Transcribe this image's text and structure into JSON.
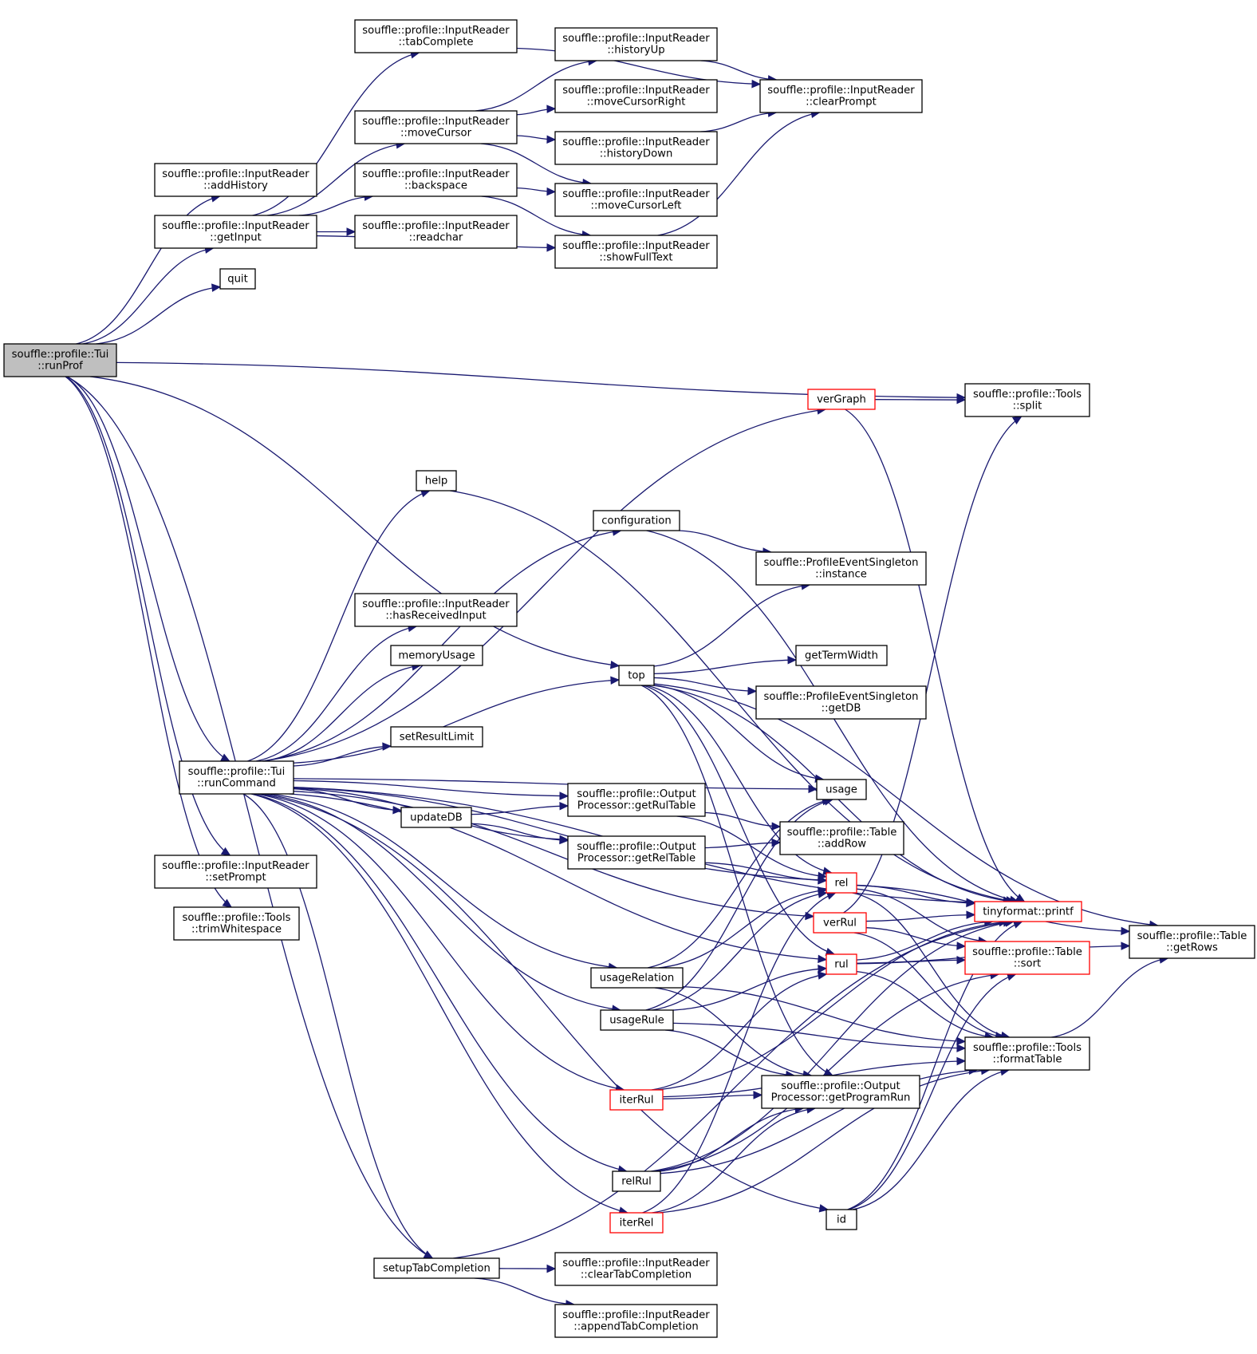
{
  "diagram": {
    "colors": {
      "edge": "#191970",
      "root_fill": "#bfbfbf",
      "highlight_border": "#ff0000",
      "box_border": "#000000"
    },
    "nodes": [
      {
        "id": "runProf",
        "lines": [
          "souffle::profile::Tui",
          "::runProf"
        ],
        "style": "root"
      },
      {
        "id": "addHistory",
        "lines": [
          "souffle::profile::InputReader",
          "::addHistory"
        ]
      },
      {
        "id": "getInput",
        "lines": [
          "souffle::profile::InputReader",
          "::getInput"
        ]
      },
      {
        "id": "quit",
        "lines": [
          "quit"
        ]
      },
      {
        "id": "tabComplete",
        "lines": [
          "souffle::profile::InputReader",
          "::tabComplete"
        ]
      },
      {
        "id": "moveCursor",
        "lines": [
          "souffle::profile::InputReader",
          "::moveCursor"
        ]
      },
      {
        "id": "backspace",
        "lines": [
          "souffle::profile::InputReader",
          "::backspace"
        ]
      },
      {
        "id": "readchar",
        "lines": [
          "souffle::profile::InputReader",
          "::readchar"
        ]
      },
      {
        "id": "historyUp",
        "lines": [
          "souffle::profile::InputReader",
          "::historyUp"
        ]
      },
      {
        "id": "moveCursorRight",
        "lines": [
          "souffle::profile::InputReader",
          "::moveCursorRight"
        ]
      },
      {
        "id": "historyDown",
        "lines": [
          "souffle::profile::InputReader",
          "::historyDown"
        ]
      },
      {
        "id": "moveCursorLeft",
        "lines": [
          "souffle::profile::InputReader",
          "::moveCursorLeft"
        ]
      },
      {
        "id": "showFullText",
        "lines": [
          "souffle::profile::InputReader",
          "::showFullText"
        ]
      },
      {
        "id": "clearPrompt",
        "lines": [
          "souffle::profile::InputReader",
          "::clearPrompt"
        ]
      },
      {
        "id": "verGraph",
        "lines": [
          "verGraph"
        ],
        "style": "red"
      },
      {
        "id": "split",
        "lines": [
          "souffle::profile::Tools",
          "::split"
        ]
      },
      {
        "id": "help",
        "lines": [
          "help"
        ]
      },
      {
        "id": "configuration",
        "lines": [
          "configuration"
        ]
      },
      {
        "id": "instance",
        "lines": [
          "souffle::ProfileEventSingleton",
          "::instance"
        ]
      },
      {
        "id": "hasReceivedInput",
        "lines": [
          "souffle::profile::InputReader",
          "::hasReceivedInput"
        ]
      },
      {
        "id": "memoryUsage",
        "lines": [
          "memoryUsage"
        ]
      },
      {
        "id": "top",
        "lines": [
          "top"
        ]
      },
      {
        "id": "getTermWidth",
        "lines": [
          "getTermWidth"
        ]
      },
      {
        "id": "getDB",
        "lines": [
          "souffle::ProfileEventSingleton",
          "::getDB"
        ]
      },
      {
        "id": "setResultLimit",
        "lines": [
          "setResultLimit"
        ]
      },
      {
        "id": "runCommand",
        "lines": [
          "souffle::profile::Tui",
          "::runCommand"
        ]
      },
      {
        "id": "usage",
        "lines": [
          "usage"
        ]
      },
      {
        "id": "getRulTable",
        "lines": [
          "souffle::profile::Output",
          "Processor::getRulTable"
        ]
      },
      {
        "id": "updateDB",
        "lines": [
          "updateDB"
        ]
      },
      {
        "id": "addRow",
        "lines": [
          "souffle::profile::Table",
          "::addRow"
        ]
      },
      {
        "id": "getRelTable",
        "lines": [
          "souffle::profile::Output",
          "Processor::getRelTable"
        ]
      },
      {
        "id": "rel",
        "lines": [
          "rel"
        ],
        "style": "red"
      },
      {
        "id": "setPrompt",
        "lines": [
          "souffle::profile::InputReader",
          "::setPrompt"
        ]
      },
      {
        "id": "trimWhitespace",
        "lines": [
          "souffle::profile::Tools",
          "::trimWhitespace"
        ]
      },
      {
        "id": "printf",
        "lines": [
          "tinyformat::printf"
        ],
        "style": "red"
      },
      {
        "id": "getRows",
        "lines": [
          "souffle::profile::Table",
          "::getRows"
        ]
      },
      {
        "id": "verRul",
        "lines": [
          "verRul"
        ],
        "style": "red"
      },
      {
        "id": "sort",
        "lines": [
          "souffle::profile::Table",
          "::sort"
        ],
        "style": "red"
      },
      {
        "id": "rul",
        "lines": [
          "rul"
        ],
        "style": "red"
      },
      {
        "id": "usageRelation",
        "lines": [
          "usageRelation"
        ]
      },
      {
        "id": "usageRule",
        "lines": [
          "usageRule"
        ]
      },
      {
        "id": "formatTable",
        "lines": [
          "souffle::profile::Tools",
          "::formatTable"
        ]
      },
      {
        "id": "getProgramRun",
        "lines": [
          "souffle::profile::Output",
          "Processor::getProgramRun"
        ]
      },
      {
        "id": "iterRul",
        "lines": [
          "iterRul"
        ],
        "style": "red"
      },
      {
        "id": "relRul",
        "lines": [
          "relRul"
        ]
      },
      {
        "id": "id",
        "lines": [
          "id"
        ]
      },
      {
        "id": "iterRel",
        "lines": [
          "iterRel"
        ],
        "style": "red"
      },
      {
        "id": "setupTabCompletion",
        "lines": [
          "setupTabCompletion"
        ]
      },
      {
        "id": "clearTabCompletion",
        "lines": [
          "souffle::profile::InputReader",
          "::clearTabCompletion"
        ]
      },
      {
        "id": "appendTabCompletion",
        "lines": [
          "souffle::profile::InputReader",
          "::appendTabCompletion"
        ]
      }
    ],
    "edges": [
      [
        "runProf",
        "addHistory"
      ],
      [
        "runProf",
        "getInput"
      ],
      [
        "runProf",
        "quit"
      ],
      [
        "runProf",
        "split"
      ],
      [
        "runProf",
        "top"
      ],
      [
        "runProf",
        "runCommand"
      ],
      [
        "runProf",
        "setPrompt"
      ],
      [
        "runProf",
        "trimWhitespace"
      ],
      [
        "runProf",
        "setupTabCompletion"
      ],
      [
        "getInput",
        "tabComplete"
      ],
      [
        "getInput",
        "moveCursor"
      ],
      [
        "getInput",
        "backspace"
      ],
      [
        "getInput",
        "readchar"
      ],
      [
        "getInput",
        "showFullText"
      ],
      [
        "tabComplete",
        "clearPrompt"
      ],
      [
        "moveCursor",
        "historyUp"
      ],
      [
        "moveCursor",
        "moveCursorRight"
      ],
      [
        "moveCursor",
        "historyDown"
      ],
      [
        "moveCursor",
        "moveCursorLeft"
      ],
      [
        "backspace",
        "moveCursorLeft"
      ],
      [
        "backspace",
        "showFullText"
      ],
      [
        "historyUp",
        "clearPrompt"
      ],
      [
        "historyDown",
        "clearPrompt"
      ],
      [
        "showFullText",
        "clearPrompt"
      ],
      [
        "verGraph",
        "split"
      ],
      [
        "verGraph",
        "printf"
      ],
      [
        "help",
        "printf"
      ],
      [
        "configuration",
        "instance"
      ],
      [
        "configuration",
        "printf"
      ],
      [
        "top",
        "instance"
      ],
      [
        "top",
        "getTermWidth"
      ],
      [
        "top",
        "getDB"
      ],
      [
        "top",
        "printf"
      ],
      [
        "top",
        "getRows"
      ],
      [
        "top",
        "usage"
      ],
      [
        "top",
        "rel"
      ],
      [
        "top",
        "rul"
      ],
      [
        "top",
        "getProgramRun"
      ],
      [
        "runCommand",
        "verGraph"
      ],
      [
        "runCommand",
        "printf"
      ],
      [
        "runCommand",
        "help"
      ],
      [
        "runCommand",
        "configuration"
      ],
      [
        "runCommand",
        "usage"
      ],
      [
        "runCommand",
        "hasReceivedInput"
      ],
      [
        "runCommand",
        "memoryUsage"
      ],
      [
        "runCommand",
        "top"
      ],
      [
        "runCommand",
        "setResultLimit"
      ],
      [
        "runCommand",
        "getRulTable"
      ],
      [
        "runCommand",
        "updateDB"
      ],
      [
        "runCommand",
        "getRelTable"
      ],
      [
        "runCommand",
        "rel"
      ],
      [
        "runCommand",
        "verRul"
      ],
      [
        "runCommand",
        "usageRelation"
      ],
      [
        "runCommand",
        "usageRule"
      ],
      [
        "runCommand",
        "rul"
      ],
      [
        "runCommand",
        "iterRul"
      ],
      [
        "runCommand",
        "id"
      ],
      [
        "runCommand",
        "relRul"
      ],
      [
        "runCommand",
        "iterRel"
      ],
      [
        "runCommand",
        "setupTabCompletion"
      ],
      [
        "updateDB",
        "getRulTable"
      ],
      [
        "updateDB",
        "getRelTable"
      ],
      [
        "getRulTable",
        "addRow"
      ],
      [
        "getRulTable",
        "rel"
      ],
      [
        "getRelTable",
        "addRow"
      ],
      [
        "getRelTable",
        "rel"
      ],
      [
        "rel",
        "printf"
      ],
      [
        "rel",
        "getRows"
      ],
      [
        "rel",
        "sort"
      ],
      [
        "rel",
        "formatTable"
      ],
      [
        "verRul",
        "split"
      ],
      [
        "verRul",
        "printf"
      ],
      [
        "verRul",
        "sort"
      ],
      [
        "verRul",
        "formatTable"
      ],
      [
        "rul",
        "printf"
      ],
      [
        "rul",
        "sort"
      ],
      [
        "rul",
        "getRows"
      ],
      [
        "rul",
        "formatTable"
      ],
      [
        "usageRelation",
        "usage"
      ],
      [
        "usageRelation",
        "rel"
      ],
      [
        "usageRelation",
        "formatTable"
      ],
      [
        "usageRelation",
        "getProgramRun"
      ],
      [
        "usageRule",
        "usage"
      ],
      [
        "usageRule",
        "rel"
      ],
      [
        "usageRule",
        "rul"
      ],
      [
        "usageRule",
        "formatTable"
      ],
      [
        "usageRule",
        "getProgramRun"
      ],
      [
        "iterRul",
        "getProgramRun"
      ],
      [
        "iterRul",
        "rul"
      ],
      [
        "iterRul",
        "printf"
      ],
      [
        "iterRul",
        "formatTable"
      ],
      [
        "relRul",
        "getProgramRun"
      ],
      [
        "relRul",
        "printf"
      ],
      [
        "relRul",
        "sort"
      ],
      [
        "relRul",
        "formatTable"
      ],
      [
        "iterRel",
        "getProgramRun"
      ],
      [
        "iterRel",
        "rel"
      ],
      [
        "iterRel",
        "formatTable"
      ],
      [
        "id",
        "printf"
      ],
      [
        "id",
        "sort"
      ],
      [
        "id",
        "formatTable"
      ],
      [
        "formatTable",
        "getRows"
      ],
      [
        "setupTabCompletion",
        "clearTabCompletion"
      ],
      [
        "setupTabCompletion",
        "appendTabCompletion"
      ],
      [
        "setupTabCompletion",
        "printf"
      ]
    ]
  }
}
